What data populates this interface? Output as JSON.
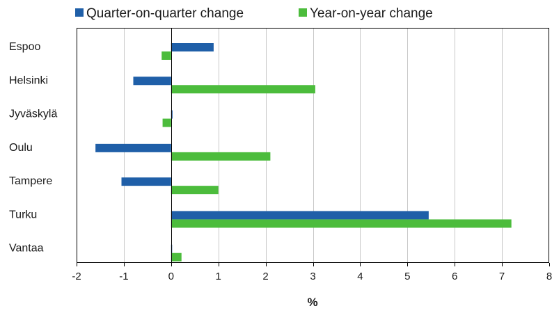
{
  "chart_data": {
    "type": "bar",
    "orientation": "horizontal",
    "categories": [
      "Espoo",
      "Helsinki",
      "Jyväskylä",
      "Oulu",
      "Tampere",
      "Turku",
      "Vantaa"
    ],
    "series": [
      {
        "name": "Quarter-on-quarter change",
        "color": "#1f5fa8",
        "values": [
          0.9,
          -0.8,
          0.03,
          -1.6,
          -1.05,
          5.45,
          0.01
        ]
      },
      {
        "name": "Year-on-year change",
        "color": "#4cbc3c",
        "values": [
          -0.2,
          3.05,
          -0.18,
          2.1,
          1.0,
          7.2,
          0.22
        ]
      }
    ],
    "xlabel": "%",
    "xlim": [
      -2,
      8
    ],
    "xticks": [
      "-2",
      "-1",
      "0",
      "1",
      "2",
      "3",
      "4",
      "5",
      "6",
      "7",
      "8"
    ],
    "grid": "vertical",
    "legend_position": "top"
  }
}
